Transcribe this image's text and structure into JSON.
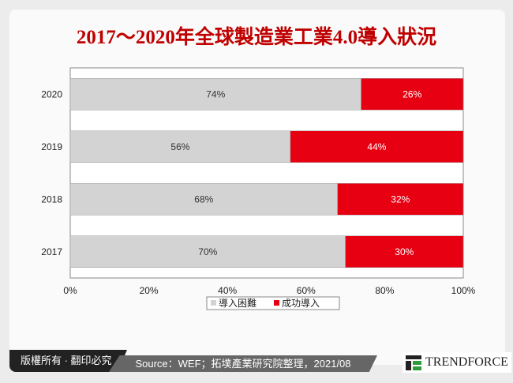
{
  "header": {
    "title": "2017～2020年全球製造業工業4.0導入狀況"
  },
  "chart_data": {
    "type": "bar",
    "stacked": true,
    "orientation": "horizontal",
    "categories": [
      "2020",
      "2019",
      "2018",
      "2017"
    ],
    "series": [
      {
        "name": "導入困難",
        "color": "#d3d3d3",
        "values": [
          74,
          56,
          68,
          70
        ]
      },
      {
        "name": "成功導入",
        "color": "#e60012",
        "values": [
          26,
          44,
          32,
          30
        ]
      }
    ],
    "xlim": [
      0,
      100
    ],
    "xticks": [
      "0%",
      "20%",
      "40%",
      "60%",
      "80%",
      "100%"
    ],
    "legend": "bottom"
  },
  "footer": {
    "copyright": "版權所有 · 翻印必究",
    "source": "Source：WEF；拓墣產業研究院整理，2021/08",
    "brand": "TRENDFORCE"
  }
}
